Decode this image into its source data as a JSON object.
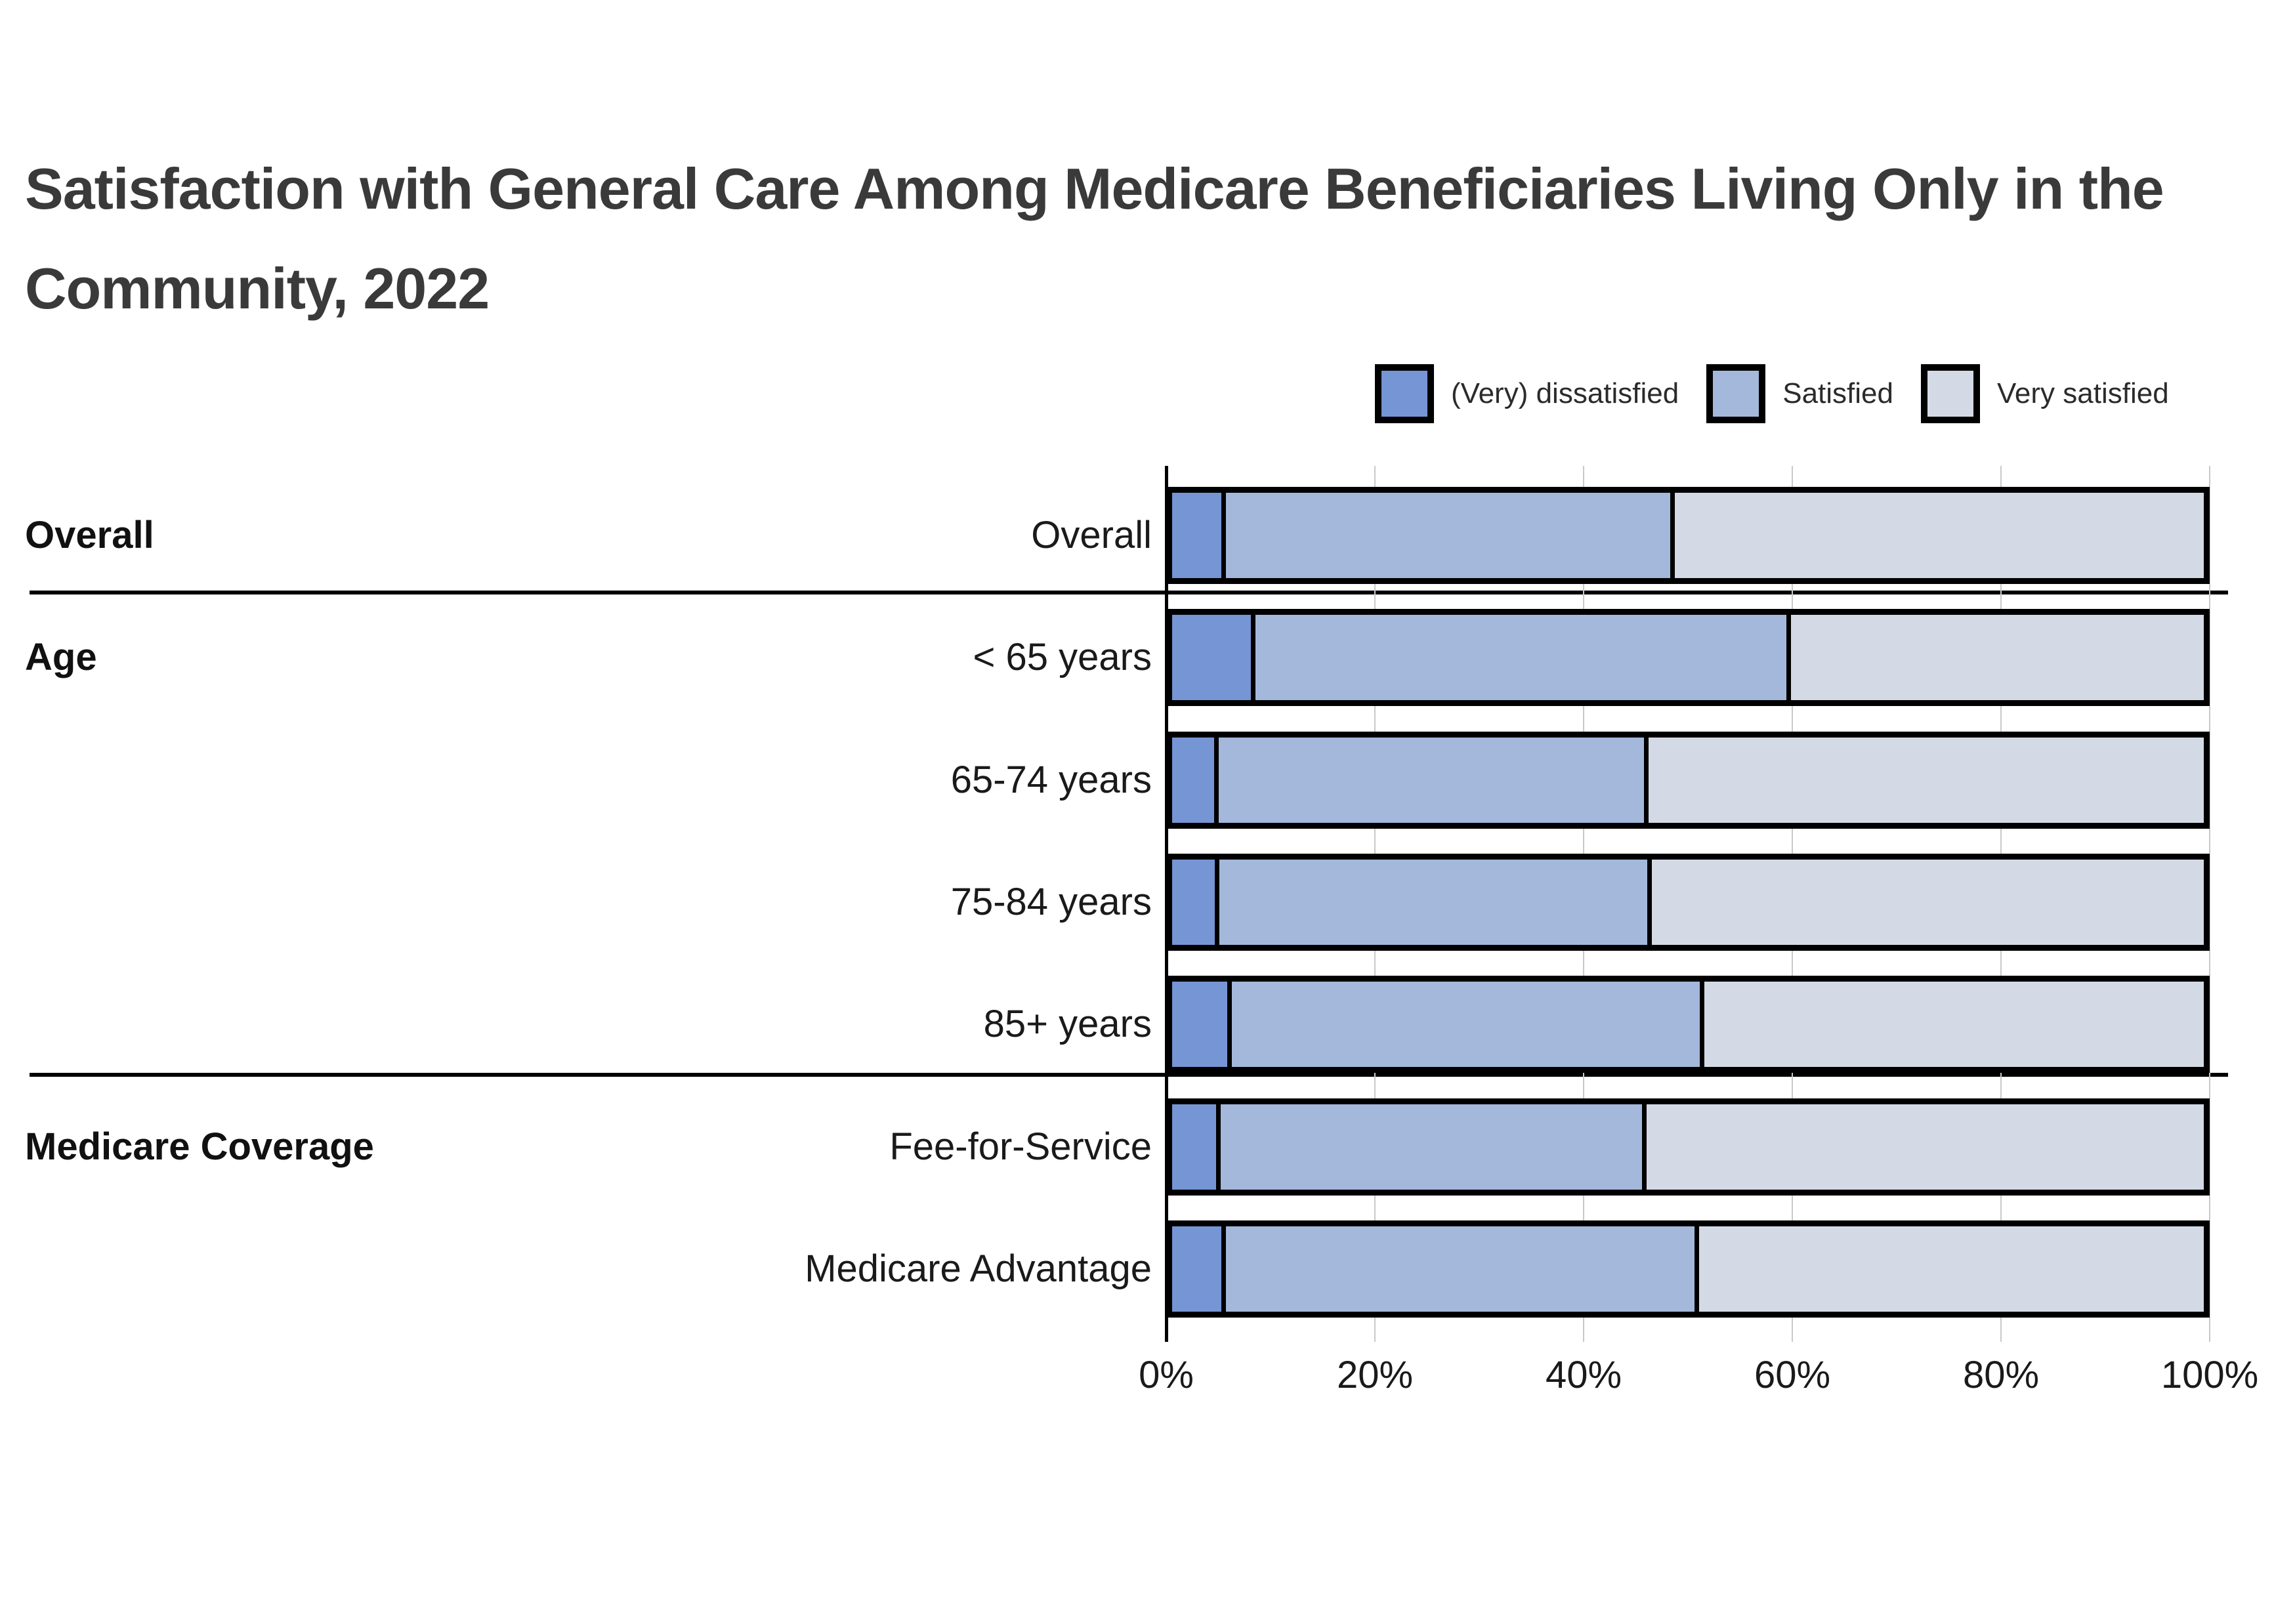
{
  "title": {
    "line1": "Satisfaction with General Care Among Medicare Beneficiaries Living Only in the",
    "line2": "Community, 2022"
  },
  "legend": [
    {
      "label": "(Very) dissatisfied",
      "color": "#7695d4"
    },
    {
      "label": "Satisfied",
      "color": "#a4b8dc"
    },
    {
      "label": "Very satisfied",
      "color": "#d4dae5"
    }
  ],
  "chart_data": {
    "type": "bar",
    "orientation": "horizontal",
    "stacked": true,
    "title": "Satisfaction with General Care Among Medicare Beneficiaries Living Only in the Community, 2022",
    "groups": [
      {
        "label": "Overall",
        "rows": [
          "Overall"
        ]
      },
      {
        "label": "Age",
        "rows": [
          "< 65 years",
          "65-74 years",
          "75-84 years",
          "85+ years"
        ]
      },
      {
        "label": "Medicare Coverage",
        "rows": [
          "Fee-for-Service",
          "Medicare Advantage"
        ]
      }
    ],
    "categories": [
      "Overall",
      "< 65 years",
      "65-74 years",
      "75-84 years",
      "85+ years",
      "Fee-for-Service",
      "Medicare Advantage"
    ],
    "series": [
      {
        "name": "(Very) dissatisfied",
        "color": "#7695d4",
        "values": [
          5.2,
          8.1,
          4.5,
          4.6,
          5.8,
          4.7,
          5.2
        ]
      },
      {
        "name": "Satisfied",
        "color": "#a4b8dc",
        "values": [
          43.5,
          51.9,
          41.7,
          41.9,
          45.8,
          41.3,
          45.9
        ]
      },
      {
        "name": "Very satisfied",
        "color": "#d4dae5",
        "values": [
          51.3,
          40.0,
          53.8,
          53.5,
          48.4,
          54.0,
          48.9
        ]
      }
    ],
    "x_ticks": [
      "0%",
      "20%",
      "40%",
      "60%",
      "80%",
      "100%"
    ],
    "x_range": [
      0,
      100
    ],
    "grid": true,
    "legend_position": "top-right"
  }
}
